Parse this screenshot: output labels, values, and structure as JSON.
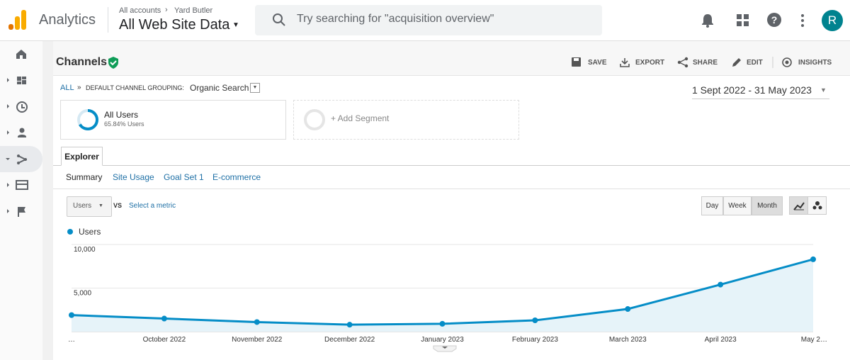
{
  "header": {
    "product": "Analytics",
    "account": "All accounts",
    "property": "Yard Butler",
    "view": "All Web Site Data",
    "search_placeholder": "Try searching for \"acquisition overview\"",
    "avatar": "R"
  },
  "report": {
    "title": "Channels",
    "actions": [
      "SAVE",
      "EXPORT",
      "SHARE",
      "EDIT",
      "INSIGHTS"
    ],
    "breadcrumb": {
      "root": "ALL",
      "separator": "»",
      "grouping": "DEFAULT CHANNEL GROUPING:",
      "value": "Organic Search"
    },
    "date_range": "1 Sept 2022 - 31 May 2023",
    "segment": {
      "name": "All Users",
      "detail": "65.84% Users",
      "add": "+ Add Segment"
    },
    "tab": "Explorer",
    "subtabs": [
      "Summary",
      "Site Usage",
      "Goal Set 1",
      "E-commerce"
    ],
    "metric": "Users",
    "vs": "VS",
    "select_metric": "Select a metric",
    "granularity": [
      "Day",
      "Week",
      "Month"
    ]
  },
  "chart_data": {
    "type": "area",
    "categories": [
      "…",
      "October 2022",
      "November 2022",
      "December 2022",
      "January 2023",
      "February 2023",
      "March 2023",
      "April 2023",
      "May 2…"
    ],
    "series": [
      {
        "name": "Users",
        "color": "#058dc7",
        "values": [
          1900,
          1500,
          1100,
          800,
          900,
          1300,
          2600,
          5400,
          8300
        ]
      }
    ],
    "ylim": [
      0,
      10000
    ],
    "yticks": [
      {
        "value": 5000,
        "label": "5,000"
      },
      {
        "value": 10000,
        "label": "10,000"
      }
    ],
    "grid": true
  }
}
